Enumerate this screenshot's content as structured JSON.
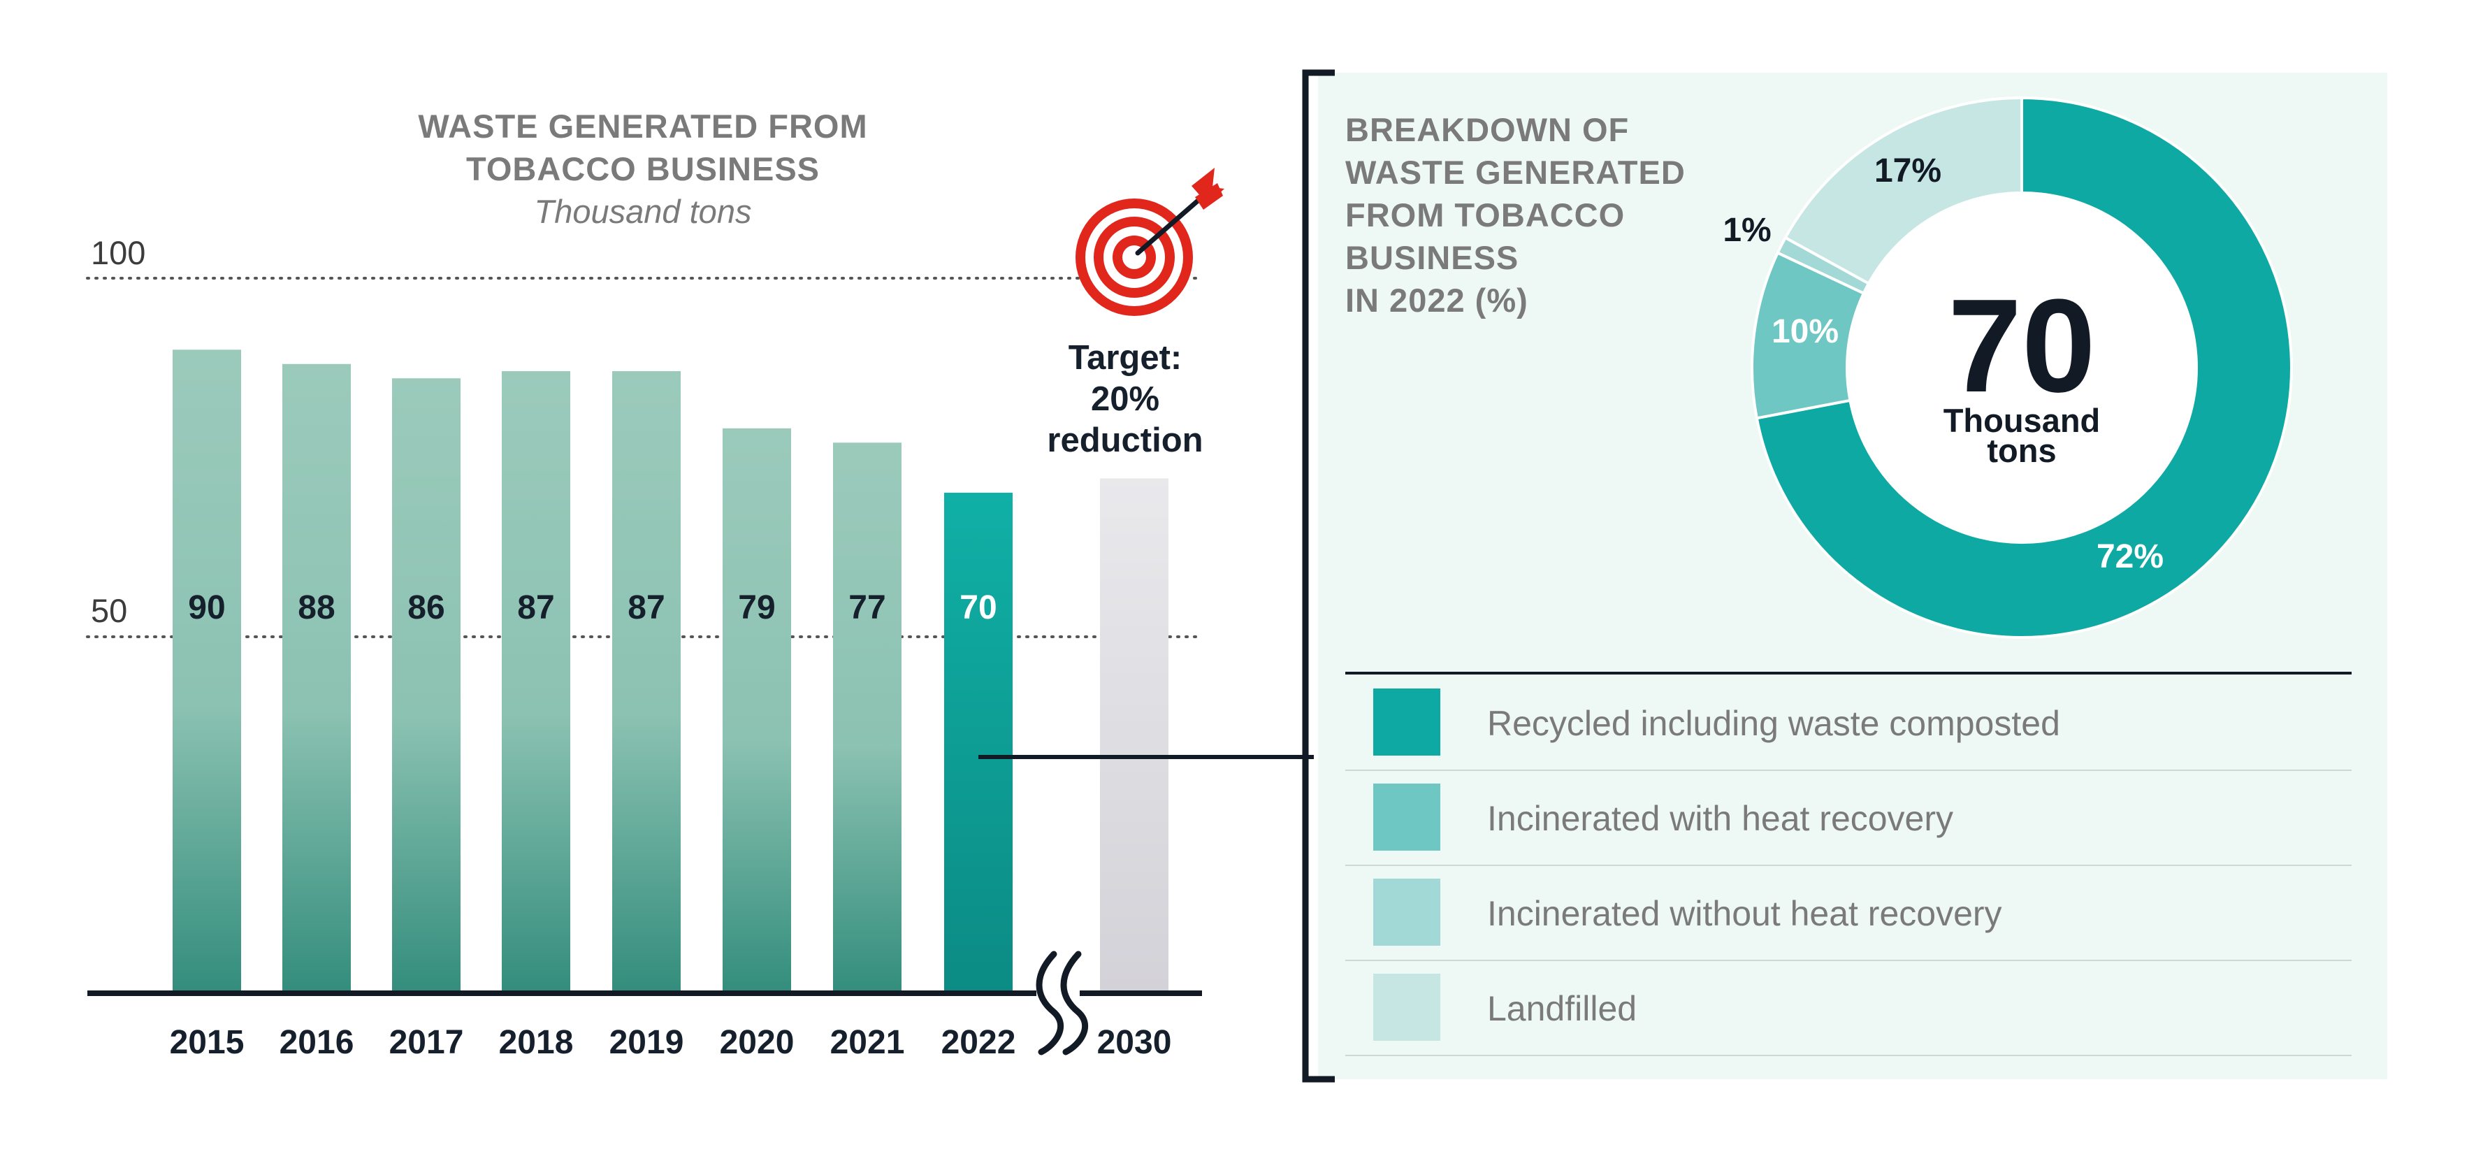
{
  "chart_data": [
    {
      "type": "bar",
      "title": "WASTE GENERATED FROM TOBACCO BUSINESS",
      "title_lines": [
        "WASTE GENERATED FROM",
        "TOBACCO BUSINESS"
      ],
      "unit": "Thousand tons",
      "categories": [
        "2015",
        "2016",
        "2017",
        "2018",
        "2019",
        "2020",
        "2021",
        "2022",
        "2030"
      ],
      "values": [
        90,
        88,
        86,
        87,
        87,
        79,
        77,
        70,
        72
      ],
      "value_labels": [
        "90",
        "88",
        "86",
        "87",
        "87",
        "79",
        "77",
        "70",
        ""
      ],
      "ylim": [
        0,
        100
      ],
      "y_ticks": [
        "100",
        "50"
      ],
      "grid": "dotted lines at 50 and 100",
      "highlight_category": "2022",
      "target": {
        "category": "2030",
        "lines": [
          "Target:",
          "20%",
          "reduction"
        ]
      },
      "axis_break_between": [
        "2022",
        "2030"
      ]
    },
    {
      "type": "pie",
      "variant": "donut",
      "title": "BREAKDOWN OF WASTE GENERATED FROM TOBACCO BUSINESS IN 2022 (%)",
      "title_lines": [
        "BREAKDOWN OF",
        "WASTE GENERATED",
        "FROM TOBACCO",
        "BUSINESS",
        "IN 2022 (%)"
      ],
      "center_value": "70",
      "center_unit_lines": [
        "Thousand",
        "tons"
      ],
      "slices": [
        {
          "label": "Recycled including waste composted",
          "value": 72,
          "value_label": "72%",
          "color": "#0fa9a3"
        },
        {
          "label": "Incinerated with heat recovery",
          "value": 10,
          "value_label": "10%",
          "color": "#6ec7c3"
        },
        {
          "label": "Incinerated without heat recovery",
          "value": 1,
          "value_label": "1%",
          "color": "#a2d9d6"
        },
        {
          "label": "Landfilled",
          "value": 17,
          "value_label": "17%",
          "color": "#c5e6e3"
        }
      ]
    }
  ],
  "colors": {
    "bar_top": "#9bcabb",
    "bar_bottom": "#338d7c",
    "highlight_top": "#10b0a6",
    "highlight_bottom": "#0b8b84",
    "target_top": "#e9e9ec",
    "target_bottom": "#d3d2d8",
    "axis": "#121a26",
    "text_dark": "#16202c",
    "title_grey": "#7a7a7a",
    "panel_bg": "#eef8f5",
    "target_icon": "#e1261c"
  },
  "icons": {
    "target": "target-dart-icon",
    "axis_break": "axis-break-icon"
  }
}
